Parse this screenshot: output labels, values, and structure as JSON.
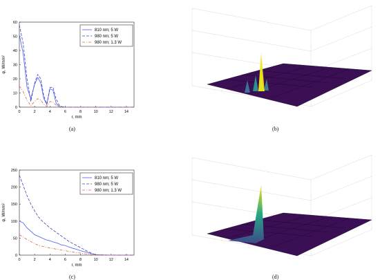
{
  "captions": {
    "a": "(a)",
    "b": "(b)",
    "c": "(c)",
    "d": "(d)"
  },
  "colors": {
    "s810": "#4a5cf0",
    "s980": "#3a45b8",
    "s980low": "#e2604a",
    "surf_floor": "#3b0f53",
    "surf_peak": "#f2e416"
  },
  "chart_data": [
    {
      "id": "a",
      "type": "line",
      "xlabel": "r, mm",
      "ylabel": "φ, W/mm²",
      "xlim": [
        0,
        15
      ],
      "ylim": [
        0,
        60
      ],
      "xticks": [
        0,
        2,
        4,
        6,
        8,
        10,
        12,
        14
      ],
      "yticks": [
        0,
        10,
        20,
        30,
        40,
        50,
        60
      ],
      "legend_position": "top-right",
      "series": [
        {
          "name": "810 nm; 5 W",
          "style": "solid",
          "x": [
            0,
            0.5,
            1,
            1.5,
            2,
            2.4,
            2.8,
            3.2,
            3.6,
            4,
            4.4,
            4.8,
            5.2,
            5.6,
            6,
            8,
            10,
            12,
            15
          ],
          "y": [
            51,
            38,
            14,
            6,
            16,
            21,
            17,
            6,
            2,
            13,
            12,
            3,
            0.5,
            0.2,
            0,
            0,
            0,
            0,
            0
          ]
        },
        {
          "name": "980 nm; 5 W",
          "style": "dashed",
          "x": [
            0,
            0.5,
            1,
            1.5,
            2,
            2.4,
            2.8,
            3.2,
            3.6,
            4,
            4.4,
            4.8,
            5.2,
            5.6,
            6,
            8,
            10,
            12,
            15
          ],
          "y": [
            58,
            45,
            20,
            4,
            17,
            23,
            20,
            8,
            2,
            14,
            14,
            6,
            1.5,
            0.3,
            0,
            0,
            0,
            0,
            0
          ]
        },
        {
          "name": "980 nm; 1.3 W",
          "style": "dashdot",
          "x": [
            0,
            0.5,
            1,
            1.5,
            2,
            2.4,
            2.8,
            3.2,
            3.6,
            4,
            4.4,
            4.8,
            5.2,
            5.6,
            6,
            8,
            10,
            12,
            15
          ],
          "y": [
            15,
            11,
            5,
            1,
            4,
            6,
            5,
            2,
            0.5,
            4,
            3.5,
            1.5,
            0.3,
            0,
            0,
            0,
            0,
            0,
            0
          ]
        }
      ]
    },
    {
      "id": "c",
      "type": "line",
      "xlabel": "r, mm",
      "ylabel": "φ, W/mm²",
      "xlim": [
        0,
        15
      ],
      "ylim": [
        0,
        250
      ],
      "xticks": [
        0,
        2,
        4,
        6,
        8,
        10,
        12,
        14
      ],
      "yticks": [
        0,
        50,
        100,
        150,
        200,
        250
      ],
      "legend_position": "top-right",
      "series": [
        {
          "name": "810 nm; 5 W",
          "style": "solid",
          "x": [
            0,
            0.5,
            1,
            1.5,
            2,
            2.5,
            3,
            3.5,
            4,
            4.5,
            5,
            5.5,
            6,
            6.5,
            7,
            7.5,
            8,
            8.5,
            9,
            9.5,
            10,
            12,
            15
          ],
          "y": [
            100,
            95,
            80,
            70,
            60,
            55,
            50,
            45,
            42,
            38,
            35,
            30,
            28,
            24,
            20,
            17,
            13,
            10,
            7,
            4,
            1,
            0,
            0
          ]
        },
        {
          "name": "980 nm; 5 W",
          "style": "dashed",
          "x": [
            0,
            0.5,
            1,
            1.5,
            2,
            2.5,
            3,
            3.5,
            4,
            4.5,
            5,
            5.5,
            6,
            6.5,
            7,
            7.5,
            8,
            8.5,
            9,
            9.5,
            10,
            12,
            15
          ],
          "y": [
            235,
            205,
            175,
            150,
            130,
            112,
            100,
            90,
            80,
            72,
            64,
            56,
            48,
            40,
            34,
            28,
            22,
            16,
            10,
            5,
            1,
            0,
            0
          ]
        },
        {
          "name": "980 nm; 1.3 W",
          "style": "dashdot",
          "x": [
            0,
            0.5,
            1,
            1.5,
            2,
            2.5,
            3,
            3.5,
            4,
            4.5,
            5,
            5.5,
            6,
            6.5,
            7,
            7.5,
            8,
            8.5,
            9,
            9.5,
            10,
            12,
            15
          ],
          "y": [
            60,
            53,
            46,
            40,
            34,
            29,
            26,
            23,
            21,
            19,
            17,
            15,
            13,
            11,
            9,
            7,
            6,
            4,
            3,
            1,
            0,
            0,
            0
          ]
        }
      ]
    }
  ]
}
